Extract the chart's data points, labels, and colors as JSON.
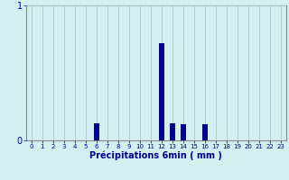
{
  "title": "",
  "xlabel": "Précipitations 6min ( mm )",
  "hours": [
    0,
    1,
    2,
    3,
    4,
    5,
    6,
    7,
    8,
    9,
    10,
    11,
    12,
    13,
    14,
    15,
    16,
    17,
    18,
    19,
    20,
    21,
    22,
    23
  ],
  "values": [
    0,
    0,
    0,
    0,
    0,
    0,
    0.13,
    0,
    0,
    0,
    0,
    0,
    0.72,
    0.13,
    0.12,
    0,
    0.12,
    0,
    0,
    0,
    0,
    0,
    0,
    0
  ],
  "bar_color": "#00008B",
  "background_color": "#d4efef",
  "grid_color": "#aacece",
  "axis_color": "#888888",
  "text_color": "#00008B",
  "ylim": [
    0,
    1
  ],
  "yticks": [
    0,
    1
  ],
  "bar_width": 0.5
}
